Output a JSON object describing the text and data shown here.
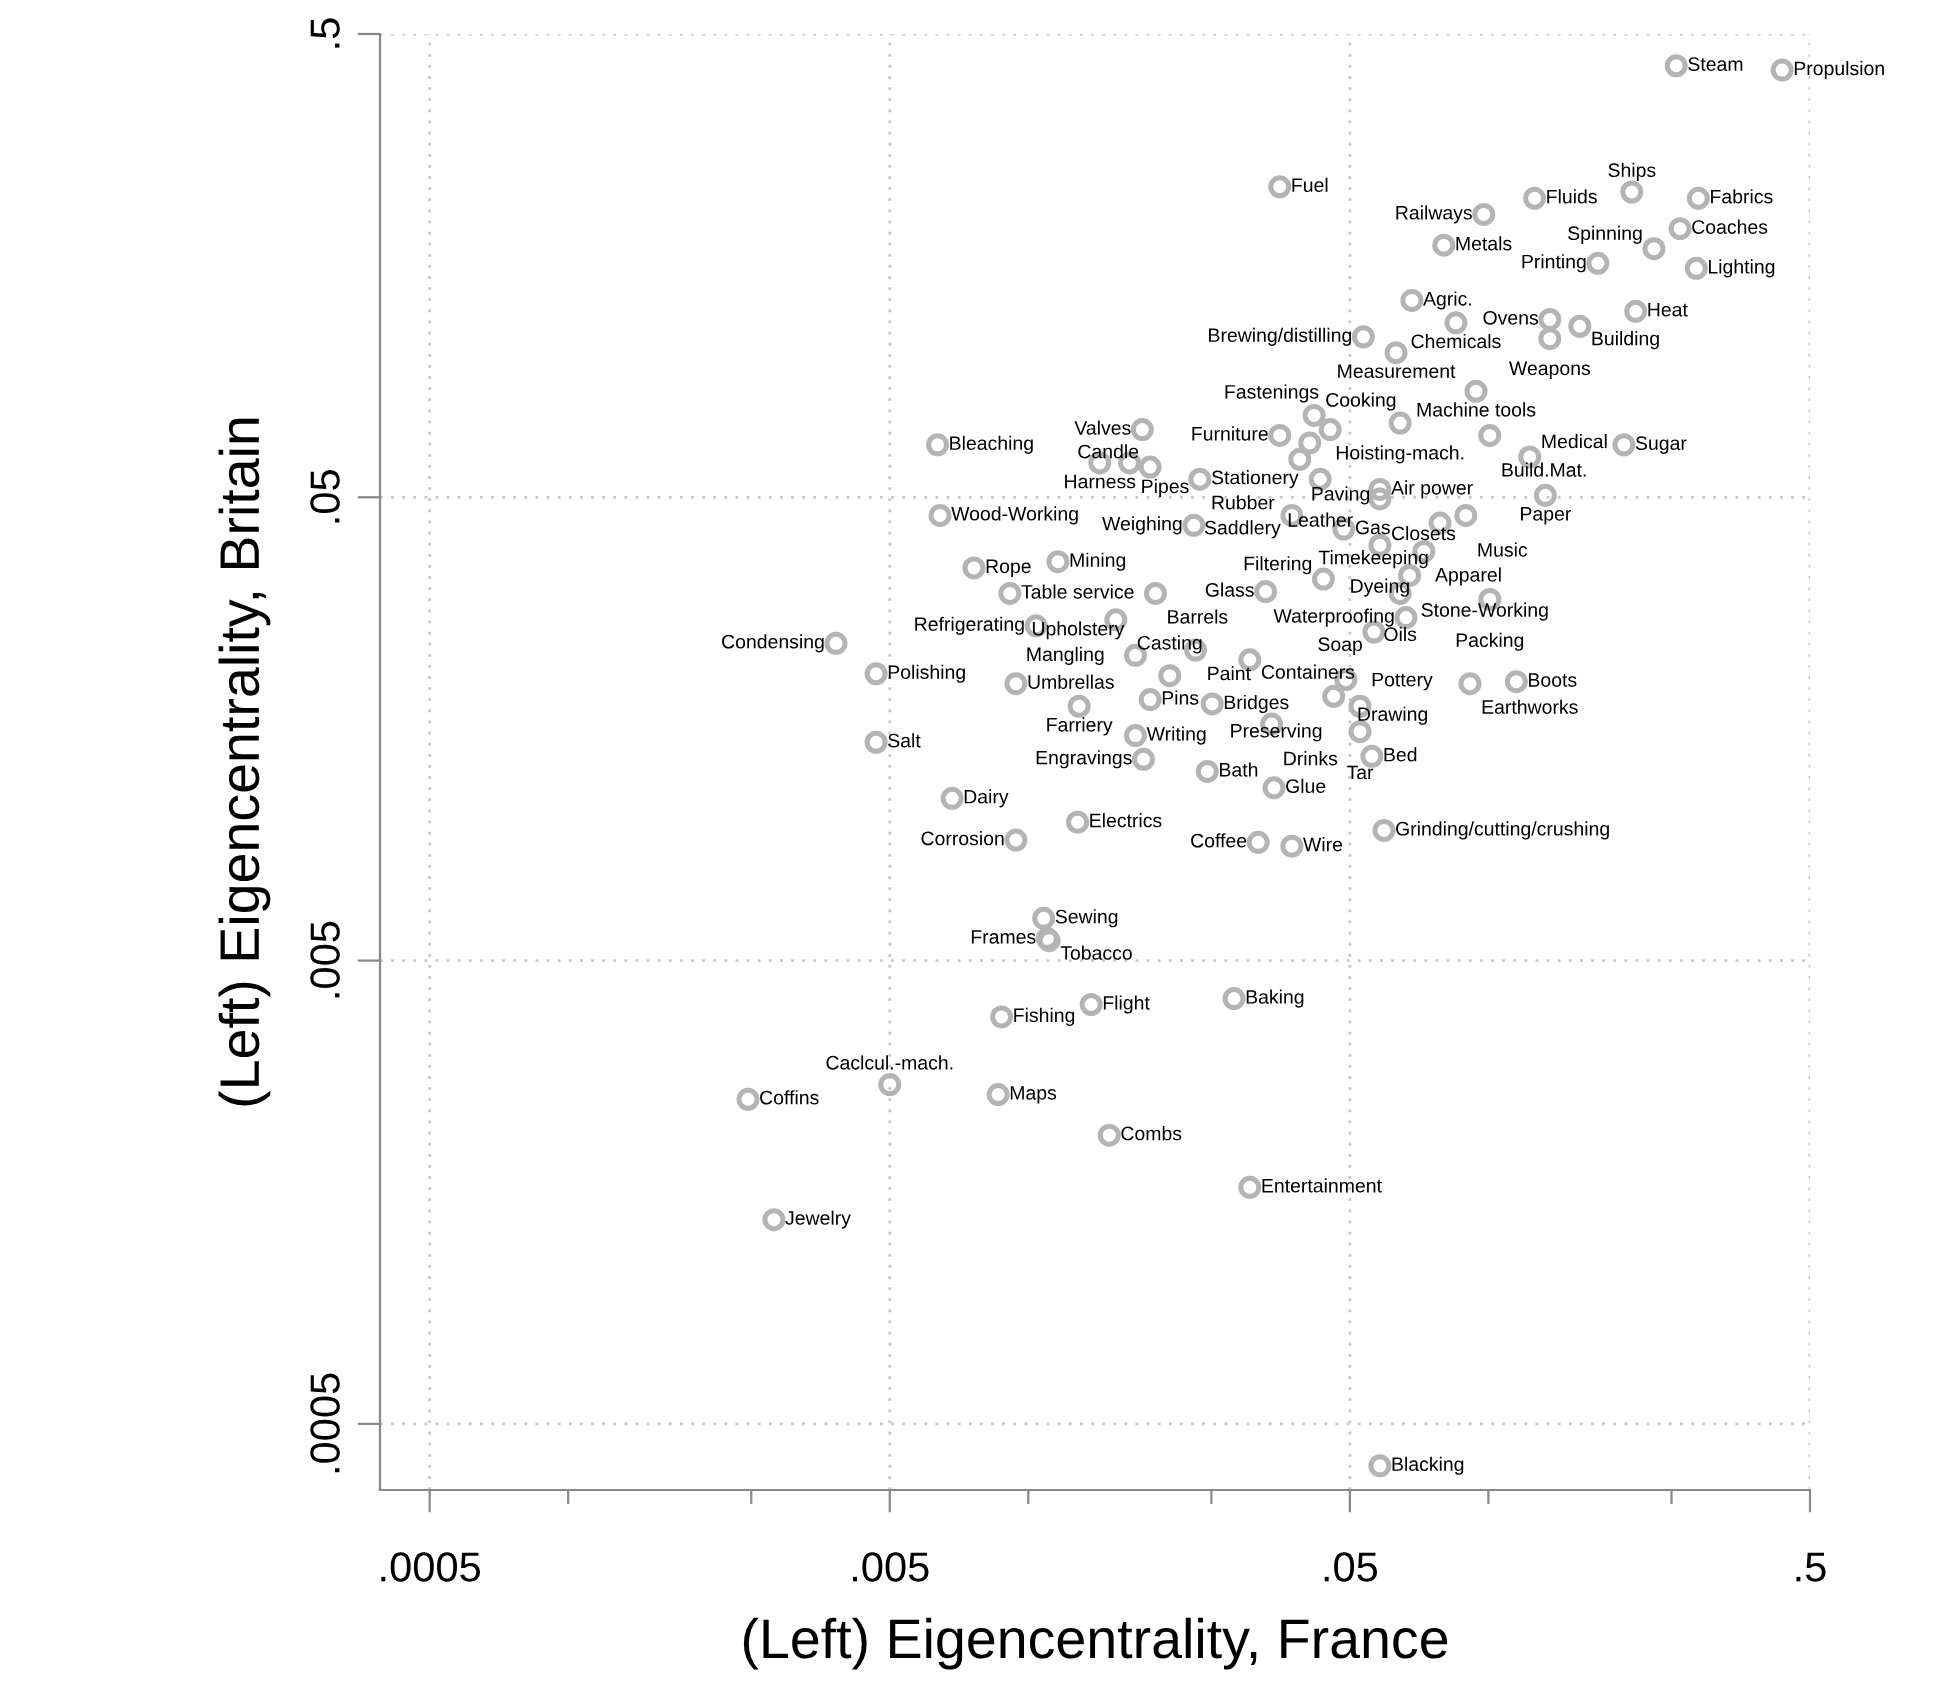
{
  "chart_data": {
    "type": "scatter",
    "xlabel": "(Left) Eigencentrality, France",
    "ylabel": "(Left) Eigencentrality, Britain",
    "log": "xy",
    "grid": true,
    "marker": "circle",
    "xlim": [
      0.00039,
      0.5
    ],
    "ylim": [
      0.00036,
      0.5
    ],
    "xticks": [
      {
        "value": 0.0005,
        "label": ".0005"
      },
      {
        "value": 0.001,
        "label": null
      },
      {
        "value": 0.0025,
        "label": null
      },
      {
        "value": 0.005,
        "label": ".005"
      },
      {
        "value": 0.01,
        "label": null
      },
      {
        "value": 0.025,
        "label": null
      },
      {
        "value": 0.05,
        "label": ".05"
      },
      {
        "value": 0.1,
        "label": null
      },
      {
        "value": 0.25,
        "label": null
      },
      {
        "value": 0.5,
        "label": ".5"
      }
    ],
    "yticks": [
      {
        "value": 0.0005,
        "label": ".0005"
      },
      {
        "value": 0.005,
        "label": ".005"
      },
      {
        "value": 0.05,
        "label": ".05"
      },
      {
        "value": 0.5,
        "label": ".5"
      }
    ],
    "series": [
      {
        "color": "#b4b4b4",
        "x": [
          0.256,
          0.435,
          0.0352,
          0.126,
          0.205,
          0.286,
          0.0977,
          0.261,
          0.08,
          0.229,
          0.173,
          0.283,
          0.0682,
          0.209,
          0.136,
          0.085,
          0.158,
          0.136,
          0.0535,
          0.063,
          0.094,
          0.0418,
          0.0643,
          0.0352,
          0.0453,
          0.0409,
          0.0389,
          0.1007,
          0.197,
          0.123,
          0.00635,
          0.0177,
          0.0143,
          0.0166,
          0.0184,
          0.0236,
          0.0431,
          0.0581,
          0.0581,
          0.133,
          0.0893,
          0.0785,
          0.0374,
          0.0485,
          0.0229,
          0.00643,
          0.0581,
          0.0724,
          0.0674,
          0.0643,
          0.1007,
          0.0438,
          0.0328,
          0.00762,
          0.0116,
          0.00912,
          0.0189,
          0.0104,
          0.0155,
          0.00382,
          0.00467,
          0.0094,
          0.0129,
          0.0184,
          0.0251,
          0.0171,
          0.00467,
          0.0178,
          0.0245,
          0.0342,
          0.00683,
          0.0128,
          0.0094,
          0.0316,
          0.0374,
          0.0593,
          0.0662,
          0.0564,
          0.0231,
          0.0171,
          0.0203,
          0.0303,
          0.049,
          0.0461,
          0.0526,
          0.0912,
          0.115,
          0.0338,
          0.0526,
          0.0558,
          0.0108,
          0.011,
          0.0111,
          0.0137,
          0.00875,
          0.028,
          0.00246,
          0.005,
          0.0086,
          0.015,
          0.0303,
          0.0028,
          0.0581
        ],
        "values": [
          0.427,
          0.418,
          0.234,
          0.221,
          0.228,
          0.221,
          0.204,
          0.19,
          0.175,
          0.172,
          0.16,
          0.156,
          0.133,
          0.126,
          0.121,
          0.119,
          0.117,
          0.11,
          0.111,
          0.1026,
          0.0847,
          0.0751,
          0.0723,
          0.068,
          0.07,
          0.0655,
          0.0604,
          0.068,
          0.0649,
          0.0611,
          0.0649,
          0.07,
          0.0593,
          0.0593,
          0.0581,
          0.0547,
          0.0547,
          0.052,
          0.0496,
          0.0505,
          0.0457,
          0.044,
          0.0457,
          0.0427,
          0.0435,
          0.0457,
          0.0394,
          0.0382,
          0.0339,
          0.031,
          0.0301,
          0.0333,
          0.0313,
          0.0352,
          0.0363,
          0.031,
          0.031,
          0.0264,
          0.0272,
          0.0242,
          0.0208,
          0.0198,
          0.0177,
          0.0183,
          0.0179,
          0.0153,
          0.0148,
          0.0136,
          0.0128,
          0.0118,
          0.0112,
          0.00995,
          0.0091,
          0.009,
          0.00883,
          0.00955,
          0.0275,
          0.0256,
          0.0234,
          0.0228,
          0.0206,
          0.0223,
          0.0202,
          0.0186,
          0.0177,
          0.0198,
          0.02,
          0.0162,
          0.0156,
          0.0138,
          0.00617,
          0.00558,
          0.00552,
          0.00402,
          0.00378,
          0.00414,
          0.00251,
          0.0027,
          0.00257,
          0.0021,
          0.00162,
          0.00138,
          0.000406
        ],
        "value_labels": [
          "Steam",
          "Propulsion",
          "Fuel",
          "Fluids",
          "Ships",
          "Fabrics",
          "Railways",
          "Coaches",
          "Metals",
          "Spinning",
          "Printing",
          "Lighting",
          "Agric.",
          "Heat",
          "Ovens",
          "Chemicals",
          "Building",
          "Weapons",
          "Brewing/distilling",
          "Measurement",
          "Machine tools",
          "Cooking",
          "Hoisting-mach.",
          "Furniture",
          "Fastenings",
          "Stationery",
          "Paving",
          "Build.Mat.",
          "Sugar",
          "Medical",
          "Bleaching",
          "Valves",
          "Harness",
          "Pipes",
          "Candle",
          "Rubber",
          "Leather",
          "Air power",
          "Closets",
          "Paper",
          "Music",
          "Timekeeping",
          "Saddlery",
          "Gas",
          "Weighing",
          "Wood-Working",
          "Dyeing",
          "Apparel",
          "Stone-Working",
          "Oils",
          "Packing",
          "Filtering",
          "Glass",
          "Rope",
          "Mining",
          "Table service",
          "Barrels",
          "Refrigerating",
          "Mangling",
          "Condensing",
          "Polishing",
          "Umbrellas",
          "Farriery",
          "Pins",
          "Bridges",
          "Writing",
          "Salt",
          "Engravings",
          "Bath",
          "Glue",
          "Dairy",
          "Electrics",
          "Corrosion",
          "Coffee",
          "Wire",
          "Grinding/cutting/crushing",
          "Waterproofing",
          "Soap",
          "Paint",
          "Upholstery",
          "Casting",
          "Containers",
          "Drawing",
          "Preserving",
          "Pottery",
          "Earthworks",
          "Boots",
          "Drinks",
          "Tar",
          "Bed",
          "Sewing",
          "Frames",
          "Tobacco",
          "Flight",
          "Fishing",
          "Baking",
          "Coffins",
          "Caclcul.-mach.",
          "Maps",
          "Combs",
          "Entertainment",
          "Jewelry",
          "Blacking"
        ]
      }
    ]
  }
}
